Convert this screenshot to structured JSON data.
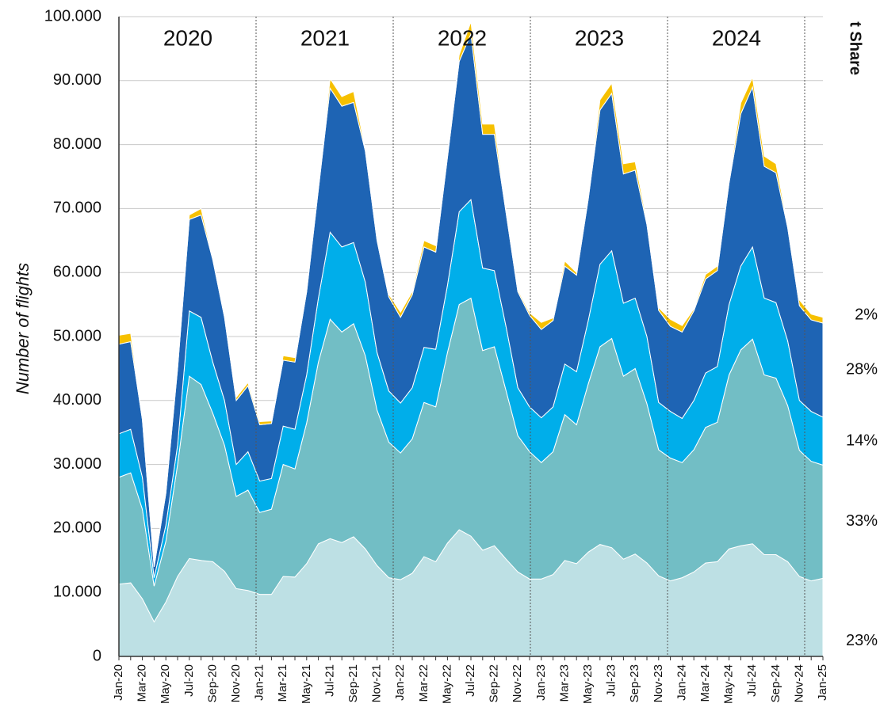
{
  "chart_data": {
    "type": "stacked_area",
    "y_label": "Number of flights",
    "legend_title": "t Share",
    "annotations": [
      "2020",
      "2021",
      "2022",
      "2023",
      "2024"
    ],
    "categories": [
      "Jan-20",
      null,
      "Mar-20",
      null,
      "May-20",
      null,
      "Jul-20",
      null,
      "Sep-20",
      null,
      "Nov-20",
      null,
      "Jan-21",
      null,
      "Mar-21",
      null,
      "May-21",
      null,
      "Jul-21",
      null,
      "Sep-21",
      null,
      "Nov-21",
      null,
      "Jan-22",
      null,
      "Mar-22",
      null,
      "May-22",
      null,
      "Jul-22",
      null,
      "Sep-22",
      null,
      "Nov-22",
      null,
      "Jan-23",
      null,
      "Mar-23",
      null,
      "May-23",
      null,
      "Jul-23",
      null,
      "Sep-23",
      null,
      "Nov-23",
      null,
      "Jan-24",
      null,
      "Mar-24",
      null,
      "May-24",
      null,
      "Jul-24",
      null,
      "Sep-24",
      null,
      "Nov-24",
      null,
      "Jan-25"
    ],
    "series": [
      {
        "label": "23%",
        "color": "#bde0e4",
        "values": [
          11300,
          11500,
          9000,
          5400,
          8500,
          12500,
          15300,
          15000,
          14800,
          13300,
          10600,
          10300,
          9700,
          9700,
          12500,
          12400,
          14500,
          17600,
          18400,
          17800,
          18700,
          16800,
          14200,
          12300,
          12000,
          13000,
          15600,
          14800,
          17700,
          19800,
          18800,
          16600,
          17300,
          15200,
          13200,
          12100,
          12100,
          12800,
          15000,
          14500,
          16300,
          17500,
          17000,
          15200,
          16000,
          14600,
          12600,
          11800,
          12300,
          13200,
          14600,
          14800,
          16800,
          17300,
          17600,
          15900,
          15900,
          14800,
          12500,
          11800,
          12200
        ]
      },
      {
        "label": "33%",
        "color": "#72bec5",
        "values": [
          16700,
          17200,
          14000,
          5600,
          9500,
          17500,
          28500,
          27500,
          23200,
          19700,
          14400,
          15700,
          12800,
          13300,
          17500,
          16900,
          22000,
          28400,
          34300,
          32900,
          33300,
          30200,
          24300,
          21200,
          19800,
          21000,
          24100,
          24200,
          29800,
          35200,
          37200,
          31200,
          31100,
          26300,
          21300,
          19900,
          18200,
          19200,
          22800,
          21700,
          26300,
          30900,
          32700,
          28600,
          29000,
          24900,
          19700,
          19200,
          18000,
          19100,
          21200,
          21800,
          27200,
          30600,
          32000,
          28100,
          27600,
          24400,
          19700,
          18700,
          17700
        ]
      },
      {
        "label": "14%",
        "color": "#00aeea",
        "values": [
          6800,
          6800,
          5000,
          1300,
          2500,
          3000,
          10200,
          10500,
          8000,
          7000,
          5000,
          6000,
          4900,
          4800,
          6000,
          6200,
          7500,
          10000,
          13600,
          13300,
          12700,
          11500,
          9000,
          8000,
          7800,
          8000,
          8600,
          9000,
          10500,
          14500,
          15400,
          12900,
          11900,
          10000,
          7500,
          7000,
          7000,
          7000,
          7900,
          8300,
          9900,
          12900,
          13700,
          11400,
          11000,
          10500,
          7400,
          7300,
          6900,
          7700,
          8500,
          8700,
          11000,
          13100,
          14400,
          12000,
          11800,
          10100,
          7800,
          7800,
          7500
        ]
      },
      {
        "label": "28%",
        "color": "#1e64b4",
        "values": [
          14000,
          13700,
          9000,
          1700,
          5000,
          12000,
          14300,
          16000,
          16000,
          13000,
          10000,
          10300,
          8800,
          8600,
          10300,
          10500,
          13000,
          17000,
          22500,
          22000,
          21900,
          20500,
          17500,
          14700,
          13400,
          14500,
          15700,
          15200,
          20000,
          23500,
          25900,
          20900,
          21300,
          17800,
          15000,
          14300,
          13800,
          13500,
          15300,
          15100,
          19000,
          24100,
          24600,
          20200,
          20000,
          17500,
          14400,
          13300,
          13500,
          14000,
          14700,
          15000,
          19000,
          23800,
          25000,
          20600,
          20300,
          17700,
          14800,
          14300,
          14700
        ]
      },
      {
        "label": "2%",
        "color": "#f6c000",
        "values": [
          1400,
          1300,
          200,
          200,
          200,
          500,
          700,
          1000,
          300,
          300,
          500,
          500,
          500,
          400,
          700,
          700,
          300,
          300,
          1500,
          1500,
          1700,
          300,
          200,
          400,
          800,
          500,
          1000,
          1000,
          300,
          1000,
          1900,
          1600,
          1600,
          300,
          300,
          400,
          1100,
          400,
          800,
          400,
          300,
          1600,
          1600,
          1600,
          1300,
          500,
          400,
          1100,
          1000,
          300,
          700,
          700,
          400,
          1700,
          1500,
          1600,
          1400,
          300,
          900,
          900,
          900
        ]
      }
    ],
    "ylim": [
      0,
      100000
    ],
    "yticks": [
      0,
      {
        "value": 10000,
        "label": "10.000"
      },
      {
        "value": 20000,
        "label": "20.000"
      },
      {
        "value": 30000,
        "label": "30.000"
      },
      {
        "value": 40000,
        "label": "40.000"
      },
      {
        "value": 50000,
        "label": "50.000"
      },
      {
        "value": 60000,
        "label": "60.000"
      },
      {
        "value": 70000,
        "label": "70.000"
      },
      {
        "value": 80000,
        "label": "80.000"
      },
      {
        "value": 90000,
        "label": "90.000"
      },
      {
        "value": 100000,
        "label": "100.000"
      }
    ],
    "grid": true
  }
}
